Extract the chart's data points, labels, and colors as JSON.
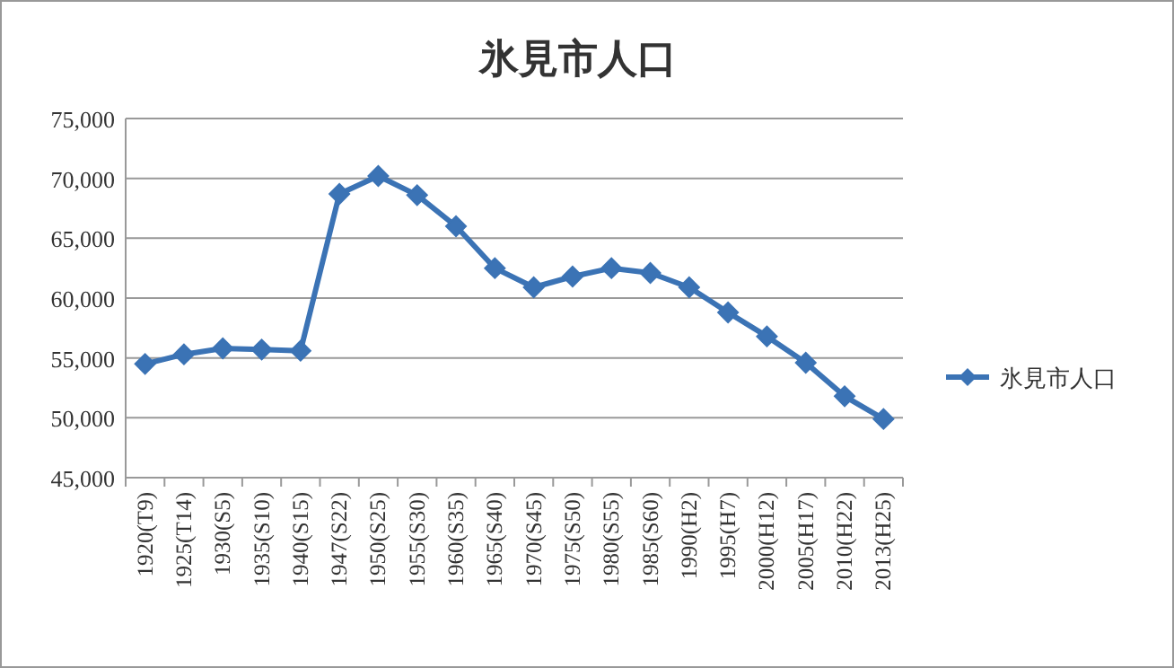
{
  "chart_data": {
    "type": "line",
    "title": "氷見市人口",
    "categories": [
      "1920(T9)",
      "1925(T14)",
      "1930(S5)",
      "1935(S10)",
      "1940(S15)",
      "1947(S22)",
      "1950(S25)",
      "1955(S30)",
      "1960(S35)",
      "1965(S40)",
      "1970(S45)",
      "1975(S50)",
      "1980(S55)",
      "1985(S60)",
      "1990(H2)",
      "1995(H7)",
      "2000(H12)",
      "2005(H17)",
      "2010(H22)",
      "2013(H25)"
    ],
    "series": [
      {
        "name": "氷見市人口",
        "color": "#3b73b5",
        "values": [
          54500,
          55300,
          55800,
          55700,
          55600,
          68700,
          70200,
          68600,
          66000,
          62500,
          60900,
          61800,
          62500,
          62100,
          60900,
          58800,
          56800,
          54600,
          51800,
          49900
        ]
      }
    ],
    "ylim": [
      45000,
      75000
    ],
    "yticks": [
      {
        "value": 45000,
        "label": "45,000"
      },
      {
        "value": 50000,
        "label": "50,000"
      },
      {
        "value": 55000,
        "label": "55,000"
      },
      {
        "value": 60000,
        "label": "60,000"
      },
      {
        "value": 65000,
        "label": "65,000"
      },
      {
        "value": 70000,
        "label": "70,000"
      },
      {
        "value": 75000,
        "label": "75,000"
      }
    ],
    "grid": "y",
    "legend": "right",
    "marker": "diamond",
    "line_style": "solid"
  }
}
